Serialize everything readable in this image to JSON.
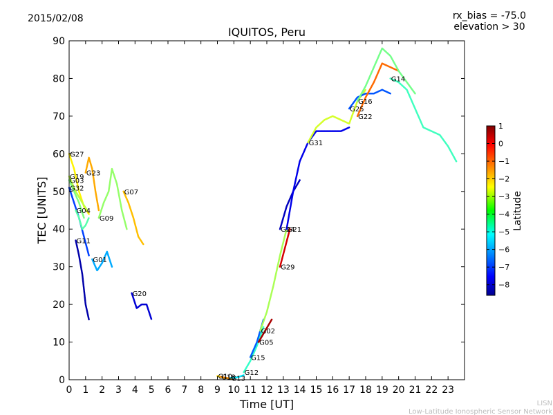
{
  "header": {
    "date": "2015/02/08",
    "rx_bias": "rx_bias = -75.0",
    "elevation": "elevation > 30"
  },
  "footer": {
    "line1": "LISN",
    "line2": "Low-Latitude Ionospheric Sensor Network"
  },
  "colorbar": {
    "label": "Latitude",
    "ticks": [
      "1",
      "0",
      "−1",
      "−2",
      "−3",
      "−4",
      "−5",
      "−6",
      "−7",
      "−8"
    ],
    "tick_values": [
      1,
      0,
      -1,
      -2,
      -3,
      -4,
      -5,
      -6,
      -7,
      -8
    ],
    "range": [
      -8.6,
      1.0
    ],
    "colormap": "jet"
  },
  "chart_data": {
    "type": "scatter",
    "title": "IQUITOS, Peru",
    "xlabel": "Time [UT]",
    "ylabel": "TEC [UNITS]",
    "xlim": [
      0,
      24
    ],
    "ylim": [
      0,
      90
    ],
    "x_ticks": [
      "0",
      "1",
      "2",
      "3",
      "4",
      "5",
      "6",
      "7",
      "8",
      "9",
      "10",
      "11",
      "12",
      "13",
      "14",
      "15",
      "16",
      "17",
      "18",
      "19",
      "20",
      "21",
      "22",
      "23"
    ],
    "y_ticks": [
      "0",
      "10",
      "20",
      "30",
      "40",
      "50",
      "60",
      "70",
      "80",
      "90"
    ],
    "y_tick_values": [
      0,
      10,
      20,
      30,
      40,
      50,
      60,
      70,
      80,
      90
    ],
    "grid": false,
    "series": [
      {
        "name": "G27",
        "lat": -2.5,
        "x": [
          0.0,
          0.3,
          0.6,
          0.9,
          1.2
        ],
        "y": [
          60,
          56,
          50,
          46,
          44
        ]
      },
      {
        "name": "G19",
        "lat": -3.2,
        "x": [
          0.0,
          0.4,
          0.8,
          1.1
        ],
        "y": [
          54,
          50,
          47,
          45
        ]
      },
      {
        "name": "G03",
        "lat": -3.8,
        "x": [
          0.0,
          0.3,
          0.6,
          0.9
        ],
        "y": [
          53,
          50,
          47,
          43
        ]
      },
      {
        "name": "G32",
        "lat": -6.8,
        "x": [
          0.0,
          0.3,
          0.6,
          0.9,
          1.2
        ],
        "y": [
          51,
          47,
          43,
          38,
          33
        ]
      },
      {
        "name": "G23",
        "lat": -1.8,
        "x": [
          1.0,
          1.2,
          1.4,
          1.6,
          1.8
        ],
        "y": [
          55,
          59,
          56,
          50,
          45
        ]
      },
      {
        "name": "G04",
        "lat": -4.2,
        "x": [
          0.4,
          0.6,
          0.8,
          1.0,
          1.2
        ],
        "y": [
          45,
          43,
          40,
          41,
          43
        ]
      },
      {
        "name": "G11",
        "lat": -8.2,
        "x": [
          0.4,
          0.6,
          0.8,
          1.0,
          1.2
        ],
        "y": [
          37,
          33,
          28,
          20,
          16
        ]
      },
      {
        "name": "G01",
        "lat": -5.8,
        "x": [
          1.4,
          1.7,
          2.0,
          2.3,
          2.6
        ],
        "y": [
          32,
          29,
          31,
          34,
          30
        ]
      },
      {
        "name": "G09",
        "lat": -3.6,
        "x": [
          1.8,
          2.1,
          2.4,
          2.6,
          2.9,
          3.2,
          3.5
        ],
        "y": [
          43,
          47,
          50,
          56,
          52,
          45,
          40
        ]
      },
      {
        "name": "G07",
        "lat": -2.0,
        "x": [
          3.3,
          3.6,
          3.9,
          4.2,
          4.5
        ],
        "y": [
          50,
          47,
          43,
          38,
          36
        ]
      },
      {
        "name": "G20",
        "lat": -7.8,
        "x": [
          3.8,
          4.1,
          4.4,
          4.7,
          5.0
        ],
        "y": [
          23,
          19,
          20,
          20,
          16
        ]
      },
      {
        "name": "G10",
        "lat": -2.2,
        "x": [
          9.0,
          9.4,
          9.8
        ],
        "y": [
          1,
          0.5,
          0.3
        ]
      },
      {
        "name": "G18",
        "lat": -1.5,
        "x": [
          9.2,
          9.5,
          9.9
        ],
        "y": [
          0.8,
          0.5,
          0.3
        ]
      },
      {
        "name": "G13",
        "lat": -5.2,
        "x": [
          9.8,
          10.2,
          10.6
        ],
        "y": [
          0.5,
          0.6,
          1.2
        ]
      },
      {
        "name": "G12",
        "lat": -4.5,
        "x": [
          10.6,
          11.0,
          11.4,
          11.8
        ],
        "y": [
          2,
          5,
          9,
          14
        ]
      },
      {
        "name": "G15",
        "lat": -6.5,
        "x": [
          11.0,
          11.4,
          11.8
        ],
        "y": [
          6,
          10,
          16
        ]
      },
      {
        "name": "G05",
        "lat": 0.6,
        "x": [
          11.5,
          11.9,
          12.3
        ],
        "y": [
          10,
          13,
          16
        ]
      },
      {
        "name": "G02",
        "lat": -3.4,
        "x": [
          11.6,
          12.0,
          12.4,
          12.8,
          13.2
        ],
        "y": [
          13,
          18,
          25,
          33,
          40
        ]
      },
      {
        "name": "G29",
        "lat": 0.2,
        "x": [
          12.8,
          13.1,
          13.4
        ],
        "y": [
          30,
          35,
          40
        ]
      },
      {
        "name": "G24",
        "lat": -8.0,
        "x": [
          12.8,
          13.2,
          13.6,
          14.0
        ],
        "y": [
          40,
          46,
          50,
          53
        ]
      },
      {
        "name": "G21",
        "lat": -7.6,
        "x": [
          13.2,
          13.6,
          14.0,
          14.5,
          15.0,
          15.5,
          16.0,
          16.5,
          17.0
        ],
        "y": [
          40,
          50,
          58,
          63,
          66,
          66,
          66,
          66,
          67
        ]
      },
      {
        "name": "G31",
        "lat": -3.0,
        "x": [
          14.5,
          15.0,
          15.5,
          16.0,
          16.5,
          17.0,
          17.5,
          18.0
        ],
        "y": [
          63,
          67,
          69,
          70,
          69,
          68,
          74,
          77
        ]
      },
      {
        "name": "G25",
        "lat": -6.6,
        "x": [
          17.0,
          17.5,
          18.0,
          18.5,
          19.0,
          19.5
        ],
        "y": [
          72,
          75,
          76,
          76,
          77,
          76
        ]
      },
      {
        "name": "G22",
        "lat": -1.2,
        "x": [
          17.5,
          18.0,
          18.5,
          19.0,
          19.5,
          20.0
        ],
        "y": [
          70,
          75,
          79,
          84,
          83,
          82
        ]
      },
      {
        "name": "G16",
        "lat": -3.9,
        "x": [
          17.5,
          18.0,
          18.5,
          19.0,
          19.5,
          20.0,
          20.5,
          21.0
        ],
        "y": [
          74,
          78,
          83,
          88,
          86,
          82,
          79,
          76
        ]
      },
      {
        "name": "G14",
        "lat": -4.4,
        "x": [
          19.5,
          20.0,
          20.5,
          21.0,
          21.5,
          22.0,
          22.5,
          23.0,
          23.5
        ],
        "y": [
          80,
          79,
          77,
          72,
          67,
          66,
          65,
          62,
          58
        ]
      }
    ]
  }
}
